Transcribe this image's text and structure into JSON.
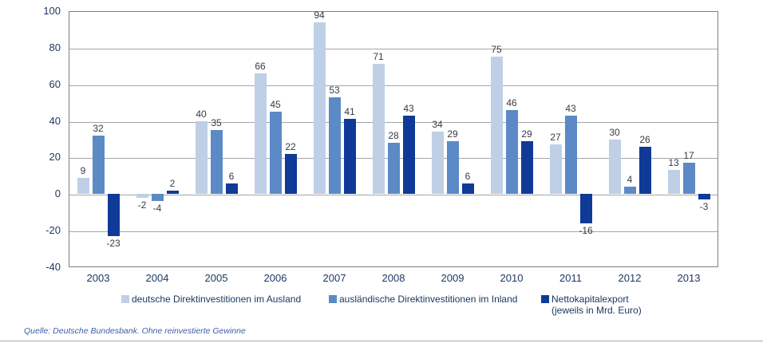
{
  "chart_data": {
    "type": "bar",
    "title": "",
    "xlabel": "",
    "ylabel": "",
    "categories": [
      "2003",
      "2004",
      "2005",
      "2006",
      "2007",
      "2008",
      "2009",
      "2010",
      "2011",
      "2012",
      "2013"
    ],
    "series": [
      {
        "name": "deutsche Direktinvestitionen im Ausland",
        "color": "#BFCFE6",
        "values": [
          9,
          -2,
          40,
          66,
          94,
          71,
          34,
          75,
          27,
          30,
          13
        ]
      },
      {
        "name": "ausländische Direktinvestitionen im Inland",
        "color": "#5B8AC6",
        "values": [
          32,
          -4,
          35,
          45,
          53,
          28,
          29,
          46,
          43,
          4,
          17
        ]
      },
      {
        "name": "Nettokapitalexport",
        "name_line2": "(jeweils in Mrd. Euro)",
        "color": "#0F3A97",
        "values": [
          -23,
          2,
          6,
          22,
          41,
          43,
          6,
          29,
          -16,
          26,
          -3
        ]
      }
    ],
    "ylim": [
      -40,
      100
    ],
    "ytick_step": 20,
    "yticks": [
      100,
      80,
      60,
      40,
      20,
      0,
      -20,
      -40
    ],
    "grid": true,
    "legend_position": "bottom"
  },
  "source_note": "Quelle: Deutsche Bundesbank. Ohne reinvestierte Gewinne",
  "colors": {
    "background": "#FFFFFF",
    "grid": "#A6A6A6",
    "border": "#7F7F7F",
    "tick_text": "#1F3864",
    "data_label": "#363B45",
    "legend_text": "#17375E",
    "source_text": "#3E5EA9"
  }
}
